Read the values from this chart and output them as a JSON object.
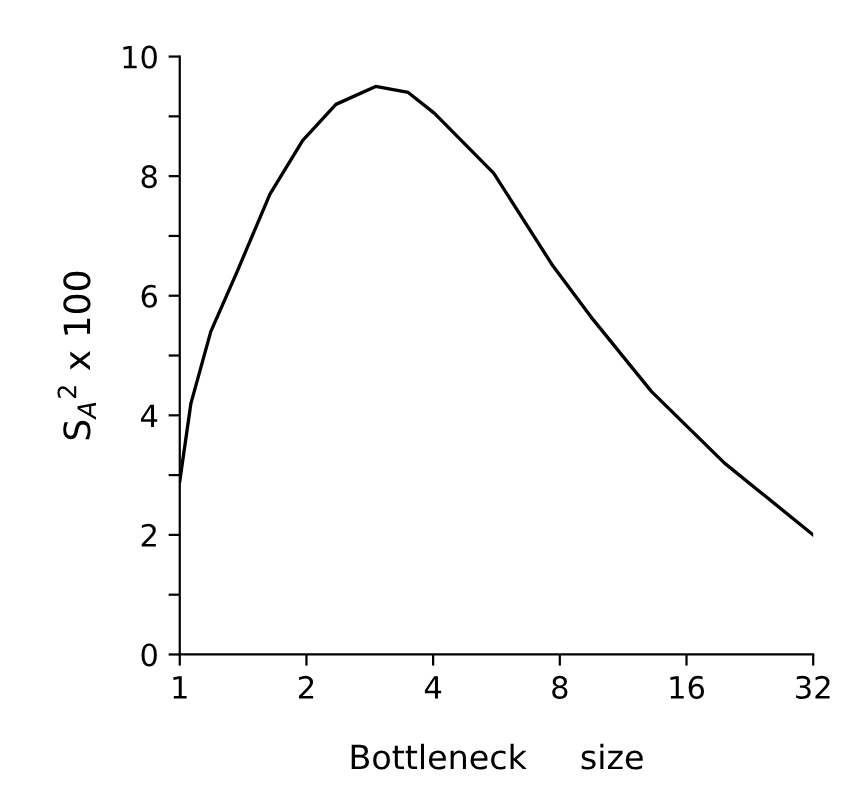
{
  "chart_data": {
    "type": "line",
    "xlabel": "Bottleneck     size",
    "ylabel": "S$_{A}$$^{2}$ x 100",
    "x": [
      1,
      1.063,
      1.185,
      1.368,
      1.638,
      1.96,
      2.35,
      2.92,
      3.49,
      4.03,
      5.57,
      7.7,
      9.6,
      13.2,
      19.7,
      32
    ],
    "series": [
      {
        "color": "#000000",
        "values": [
          2.9,
          4.2,
          5.4,
          6.4,
          7.7,
          8.6,
          9.2,
          9.5,
          9.4,
          9.05,
          8.05,
          6.5,
          5.6,
          4.4,
          3.2,
          2.0
        ]
      }
    ],
    "log": "x",
    "xlim": [
      1,
      32
    ],
    "ylim": [
      0,
      10
    ],
    "xticks": [
      1,
      2,
      4,
      8,
      16,
      32
    ],
    "yticks": [
      0,
      {
        "value": 1,
        "label": null
      },
      2,
      {
        "value": 3,
        "label": null
      },
      4,
      {
        "value": 5,
        "label": null
      },
      6,
      {
        "value": 7,
        "label": null
      },
      8,
      {
        "value": 9,
        "label": null
      },
      10
    ],
    "grid": false,
    "legend": false,
    "marker": "none",
    "line_style": "solid"
  }
}
